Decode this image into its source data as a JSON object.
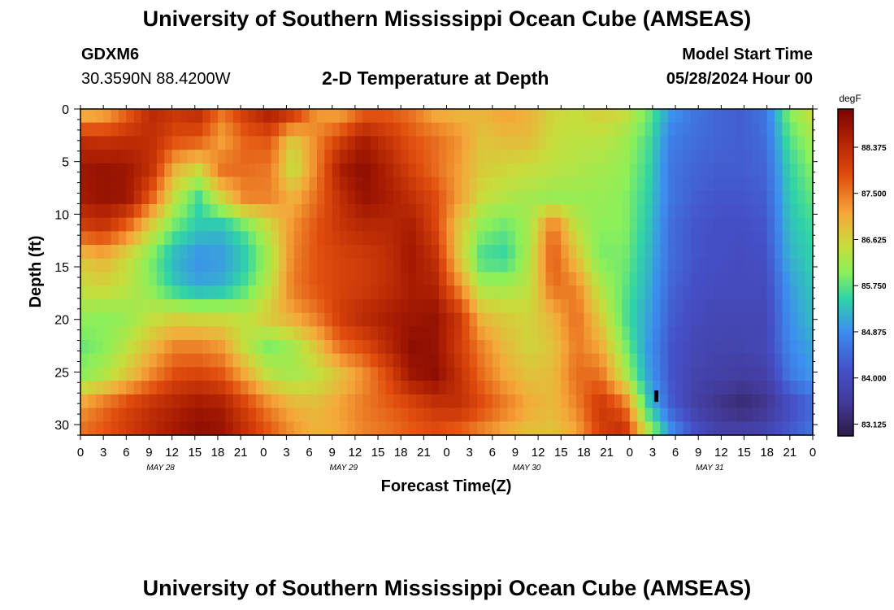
{
  "header": {
    "title": "University of Southern Mississippi Ocean Cube (AMSEAS)",
    "station": "GDXM6",
    "coords": "30.3590N  88.4200W",
    "plot_title": "2-D Temperature at Depth",
    "model_label": "Model Start Time",
    "model_time": "05/28/2024 Hour 00"
  },
  "footer": {
    "title": "University of Southern Mississippi Ocean Cube (AMSEAS)"
  },
  "chart_data": {
    "type": "heatmap",
    "xlabel": "Forecast Time(Z)",
    "ylabel": "Depth (ft)",
    "x_range_hours": [
      0,
      96
    ],
    "y_range_ft": [
      0,
      31
    ],
    "y_inverted": true,
    "x_ticks": [
      "0",
      "3",
      "6",
      "9",
      "12",
      "15",
      "18",
      "21",
      "0",
      "3",
      "6",
      "9",
      "12",
      "15",
      "18",
      "21",
      "0",
      "3",
      "6",
      "9",
      "12",
      "15",
      "18",
      "21",
      "0",
      "3",
      "6",
      "9",
      "12",
      "15",
      "18",
      "21",
      "0"
    ],
    "y_ticks": [
      0,
      5,
      10,
      15,
      20,
      25,
      30
    ],
    "day_labels": [
      "MAY 28",
      "MAY 29",
      "MAY 30",
      "MAY 31"
    ],
    "colorbar": {
      "unit": "degF",
      "range": [
        82.9,
        89.1
      ],
      "ticks": [
        "88.375",
        "87.500",
        "86.625",
        "85.750",
        "84.875",
        "84.000",
        "83.125"
      ]
    },
    "grid_rows": [
      [
        86.7,
        86.9,
        87.6,
        88.4,
        88.2,
        88.4,
        87.6,
        88.2,
        88.7,
        88.4,
        87.2,
        87.0,
        87.6,
        87.7,
        87.5,
        87.0,
        86.9,
        87.0,
        87.2,
        87.0,
        86.6,
        86.5,
        86.7,
        86.6,
        85.9,
        85.0,
        84.6,
        84.4,
        84.3,
        84.6,
        86.0,
        86.6
      ],
      [
        88.3,
        88.2,
        88.3,
        88.3,
        87.9,
        87.8,
        87.1,
        87.7,
        87.8,
        86.7,
        87.4,
        88.0,
        88.6,
        88.2,
        87.8,
        87.6,
        87.3,
        86.8,
        86.9,
        86.9,
        86.5,
        86.4,
        86.4,
        86.2,
        85.7,
        84.7,
        84.5,
        84.4,
        84.3,
        84.5,
        85.7,
        86.2
      ],
      [
        88.7,
        88.8,
        88.7,
        88.3,
        87.0,
        86.6,
        87.6,
        87.6,
        87.5,
        86.4,
        87.4,
        88.6,
        88.9,
        88.5,
        88.0,
        87.6,
        87.2,
        86.7,
        86.6,
        86.5,
        86.4,
        86.3,
        86.2,
        86.1,
        85.6,
        84.6,
        84.4,
        84.3,
        84.3,
        84.4,
        85.5,
        86.0
      ],
      [
        88.6,
        88.8,
        88.7,
        87.7,
        86.4,
        85.6,
        86.6,
        87.4,
        87.4,
        87.0,
        87.6,
        88.3,
        88.8,
        88.6,
        88.3,
        87.9,
        87.2,
        86.5,
        86.3,
        86.2,
        86.1,
        86.1,
        86.1,
        86.0,
        85.5,
        84.6,
        84.3,
        84.2,
        84.2,
        84.3,
        85.4,
        85.8
      ],
      [
        88.0,
        88.2,
        87.6,
        86.6,
        85.8,
        85.4,
        85.3,
        85.8,
        86.5,
        87.3,
        87.8,
        88.2,
        88.4,
        88.4,
        88.6,
        88.0,
        86.8,
        86.0,
        85.8,
        86.2,
        87.6,
        86.4,
        86.0,
        86.0,
        85.4,
        84.5,
        84.2,
        84.1,
        84.1,
        84.2,
        85.3,
        85.6
      ],
      [
        86.8,
        87.0,
        86.5,
        85.9,
        85.2,
        84.9,
        85.0,
        85.4,
        86.2,
        87.4,
        87.8,
        88.0,
        88.1,
        88.3,
        88.7,
        88.3,
        86.8,
        85.6,
        85.5,
        86.3,
        87.8,
        86.8,
        85.9,
        85.9,
        85.3,
        84.5,
        84.2,
        84.1,
        84.0,
        84.1,
        85.2,
        85.5
      ],
      [
        86.5,
        86.6,
        86.4,
        86.0,
        85.4,
        85.1,
        85.2,
        85.7,
        86.4,
        87.5,
        87.8,
        88.0,
        88.1,
        88.3,
        88.6,
        88.5,
        87.4,
        86.2,
        86.2,
        86.4,
        87.6,
        87.4,
        86.3,
        85.8,
        85.2,
        84.4,
        84.1,
        84.0,
        84.0,
        84.0,
        85.0,
        85.4
      ],
      [
        86.1,
        86.0,
        86.1,
        86.4,
        86.6,
        86.5,
        86.5,
        86.4,
        86.8,
        87.1,
        87.5,
        88.1,
        88.4,
        88.6,
        88.7,
        88.8,
        88.2,
        86.9,
        86.7,
        86.6,
        87.0,
        87.6,
        86.7,
        85.7,
        85.1,
        84.3,
        84.0,
        83.9,
        83.9,
        83.9,
        84.9,
        85.3
      ],
      [
        85.8,
        86.0,
        86.4,
        86.9,
        87.4,
        87.4,
        87.2,
        86.4,
        85.9,
        86.2,
        86.8,
        87.6,
        87.9,
        88.4,
        88.9,
        88.8,
        88.1,
        87.4,
        86.9,
        86.6,
        86.8,
        87.5,
        87.1,
        86.0,
        85.0,
        84.2,
        83.9,
        83.8,
        83.8,
        83.9,
        84.8,
        85.1
      ],
      [
        86.0,
        86.3,
        86.8,
        87.4,
        87.9,
        88.0,
        87.8,
        87.1,
        86.4,
        86.2,
        86.4,
        86.8,
        87.3,
        87.9,
        88.7,
        88.9,
        88.3,
        87.6,
        87.1,
        86.8,
        86.9,
        87.6,
        87.6,
        86.4,
        85.1,
        84.2,
        83.8,
        83.7,
        83.6,
        83.7,
        84.6,
        85.0
      ],
      [
        87.2,
        87.6,
        88.0,
        88.3,
        88.5,
        88.7,
        88.6,
        88.0,
        87.4,
        87.0,
        86.9,
        87.2,
        87.5,
        87.7,
        87.9,
        88.2,
        88.3,
        87.9,
        87.5,
        87.1,
        86.9,
        87.4,
        88.2,
        87.7,
        85.5,
        84.3,
        83.7,
        83.4,
        83.2,
        83.4,
        84.0,
        84.4
      ],
      [
        87.6,
        87.8,
        88.1,
        88.4,
        88.7,
        88.9,
        88.8,
        88.3,
        87.8,
        87.3,
        87.0,
        87.1,
        87.4,
        87.5,
        87.7,
        87.8,
        87.6,
        87.3,
        87.0,
        86.8,
        86.8,
        87.1,
        88.0,
        88.4,
        86.5,
        85.0,
        84.2,
        83.8,
        83.8,
        83.9,
        84.3,
        84.6
      ]
    ],
    "marker": {
      "hour": 75.5,
      "depth_ft": 27.3
    }
  }
}
